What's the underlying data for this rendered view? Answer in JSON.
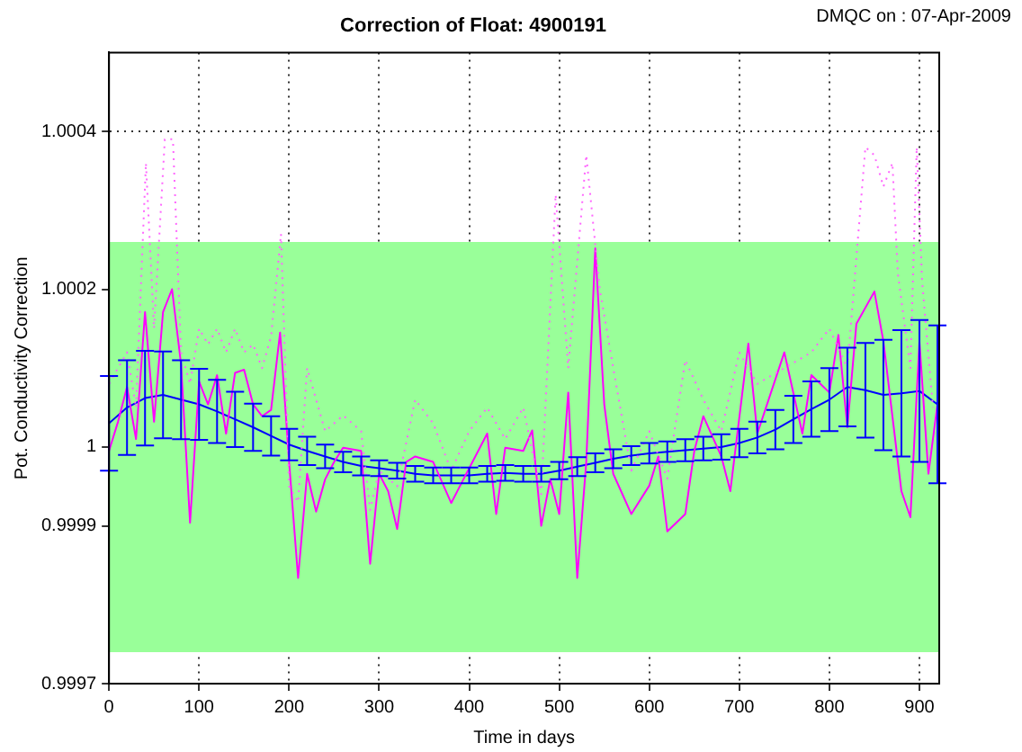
{
  "chart_data": {
    "type": "line",
    "title": "Correction of Float: 4900191",
    "xlabel": "Time in days",
    "ylabel": "Pot. Conductivity Correction",
    "annotations": [
      "DMQC on : 07-Apr-2009"
    ],
    "xlim": [
      0,
      922
    ],
    "xticks": [
      0,
      100,
      200,
      300,
      400,
      500,
      600,
      700,
      800,
      900
    ],
    "ylim": [
      0.9997,
      1.0005
    ],
    "yticks": [
      0.9997,
      0.9999,
      1,
      1.0002,
      1.0004
    ],
    "grid": true,
    "bands": [
      {
        "axis": "y",
        "from": 0.99974,
        "to": 1.00026,
        "color": "#99ff99"
      }
    ],
    "series": [
      {
        "line_style": "dotted",
        "color": "#ff66ff",
        "x": [
          0,
          10,
          20,
          30,
          41,
          50,
          62,
          71,
          80,
          90,
          100,
          110,
          120,
          130,
          140,
          150,
          160,
          170,
          180,
          191,
          200,
          210,
          220,
          240,
          260,
          280,
          290,
          300,
          320,
          340,
          360,
          380,
          400,
          420,
          440,
          460,
          480,
          496,
          510,
          530,
          545,
          560,
          580,
          600,
          620,
          640,
          660,
          680,
          700,
          720,
          750,
          780,
          800,
          820,
          840,
          850,
          860,
          870,
          876,
          890,
          897,
          903,
          915
        ],
        "values": [
          1.00008,
          1.0001,
          1.00012,
          1.00005,
          1.00036,
          1.00015,
          1.00039,
          1.00039,
          1.00012,
          1.00008,
          1.00015,
          1.00013,
          1.00015,
          1.00012,
          1.00015,
          1.00012,
          1.00013,
          1.0001,
          1.00014,
          1.00027,
          0.99995,
          0.99993,
          1.0001,
          1.00002,
          1.00004,
          1.00002,
          0.99992,
          0.99997,
          0.99995,
          1.00006,
          1.00003,
          0.99997,
          1.00002,
          1.00005,
          1.00001,
          1.00005,
          0.99994,
          1.00032,
          1.0001,
          1.00037,
          1.0002,
          1.0001,
          0.99997,
          1.00002,
          0.99996,
          1.00011,
          1.00006,
          1.00002,
          1.00012,
          1.00008,
          1.0001,
          1.00012,
          1.00015,
          1.0001,
          1.00038,
          1.00037,
          1.00033,
          1.00036,
          1.00022,
          1.0001,
          1.00038,
          1.00021,
          1.00005
        ]
      },
      {
        "line_style": "solid",
        "color": "#ff00ff",
        "x": [
          0,
          10,
          20,
          30,
          40,
          50,
          60,
          70,
          80,
          90,
          100,
          110,
          120,
          130,
          140,
          150,
          160,
          170,
          180,
          190,
          200,
          210,
          220,
          230,
          240,
          250,
          260,
          280,
          290,
          300,
          310,
          320,
          330,
          340,
          360,
          380,
          400,
          420,
          430,
          440,
          460,
          470,
          480,
          490,
          500,
          510,
          520,
          530,
          540,
          550,
          560,
          580,
          600,
          610,
          620,
          640,
          650,
          660,
          680,
          690,
          710,
          720,
          750,
          770,
          780,
          800,
          810,
          820,
          830,
          850,
          860,
          880,
          890,
          900,
          910,
          920
        ],
        "values": [
          0.999995,
          1.000032,
          1.000076,
          1.00001,
          1.000171,
          1.000032,
          1.000171,
          1.0002,
          1.000105,
          0.999904,
          1.000083,
          1.000054,
          1.000091,
          1.000017,
          1.000094,
          1.000098,
          1.000054,
          1.000039,
          1.000047,
          1.000145,
          0.999981,
          0.999834,
          0.999966,
          0.999918,
          0.999959,
          0.999981,
          0.999999,
          0.999995,
          0.999852,
          0.999966,
          0.999944,
          0.999896,
          0.999981,
          0.999988,
          0.999981,
          0.999929,
          0.999973,
          1.000017,
          0.999915,
          0.999999,
          0.999995,
          1.000021,
          0.9999,
          0.999959,
          0.999915,
          1.000069,
          0.999834,
          0.999981,
          1.000252,
          1.000054,
          0.999966,
          0.999915,
          0.999951,
          0.999988,
          0.999893,
          0.999915,
          0.999995,
          1.000039,
          0.999988,
          0.999944,
          1.000131,
          1.000017,
          1.00012,
          1.000017,
          1.000091,
          1.000069,
          1.000142,
          1.000025,
          1.000156,
          1.000197,
          1.000134,
          0.999944,
          0.999911,
          1.000134,
          0.999966,
          1.000054
        ]
      },
      {
        "line_style": "solid",
        "color": "#0000ff",
        "x": [
          0,
          20,
          40,
          60,
          80,
          100,
          120,
          140,
          160,
          180,
          200,
          220,
          240,
          260,
          280,
          300,
          320,
          340,
          360,
          380,
          400,
          420,
          440,
          460,
          480,
          500,
          520,
          540,
          560,
          580,
          600,
          620,
          640,
          660,
          680,
          700,
          720,
          740,
          760,
          780,
          800,
          820,
          840,
          860,
          880,
          900,
          920
        ],
        "values": [
          1.00003,
          1.00005,
          1.000062,
          1.000066,
          1.00006,
          1.000054,
          1.000045,
          1.000035,
          1.000025,
          1.000014,
          1.000003,
          0.999995,
          0.999988,
          0.999981,
          0.999976,
          0.999973,
          0.99997,
          0.999966,
          0.999964,
          0.999964,
          0.999964,
          0.999966,
          0.999967,
          0.999966,
          0.999966,
          0.99997,
          0.999975,
          0.99998,
          0.999985,
          0.999989,
          0.999992,
          0.999994,
          0.999996,
          0.999998,
          1.0,
          1.000005,
          1.000012,
          1.000022,
          1.000035,
          1.000048,
          1.00006,
          1.000076,
          1.000072,
          1.000066,
          1.000068,
          1.000071,
          1.000054
        ],
        "errors": [
          6e-05,
          6e-05,
          6e-05,
          5.5e-05,
          5e-05,
          4.5e-05,
          4e-05,
          3.5e-05,
          3e-05,
          2.5e-05,
          2e-05,
          1.8e-05,
          1.5e-05,
          1.3e-05,
          1.2e-05,
          1e-05,
          1e-05,
          1e-05,
          1e-05,
          1e-05,
          1e-05,
          1e-05,
          1e-05,
          1e-05,
          1e-05,
          1.1e-05,
          1.2e-05,
          1.2e-05,
          1.2e-05,
          1.2e-05,
          1.3e-05,
          1.3e-05,
          1.4e-05,
          1.5e-05,
          1.6e-05,
          1.8e-05,
          2e-05,
          2.5e-05,
          3e-05,
          3.5e-05,
          4e-05,
          5e-05,
          6e-05,
          7e-05,
          8e-05,
          9e-05,
          0.0001
        ]
      }
    ]
  }
}
